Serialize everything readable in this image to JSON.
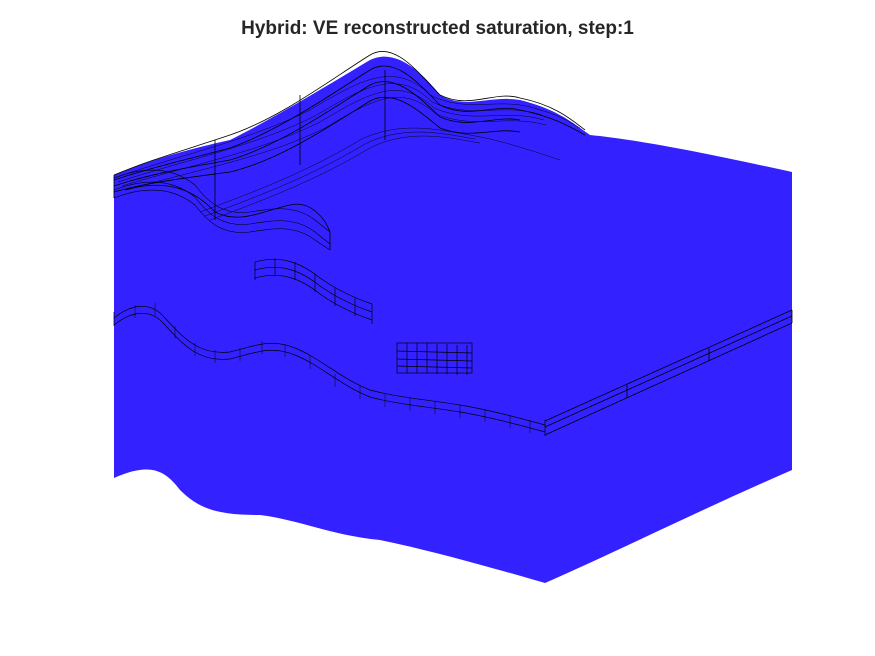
{
  "figure": {
    "title": "Hybrid: VE reconstructed saturation, step:1",
    "colors": {
      "background": "#ffffff",
      "saturation_fill": "#3322ff",
      "grid_line": "#000000",
      "title": "#262626"
    },
    "view": "3D isometric reservoir grid"
  }
}
